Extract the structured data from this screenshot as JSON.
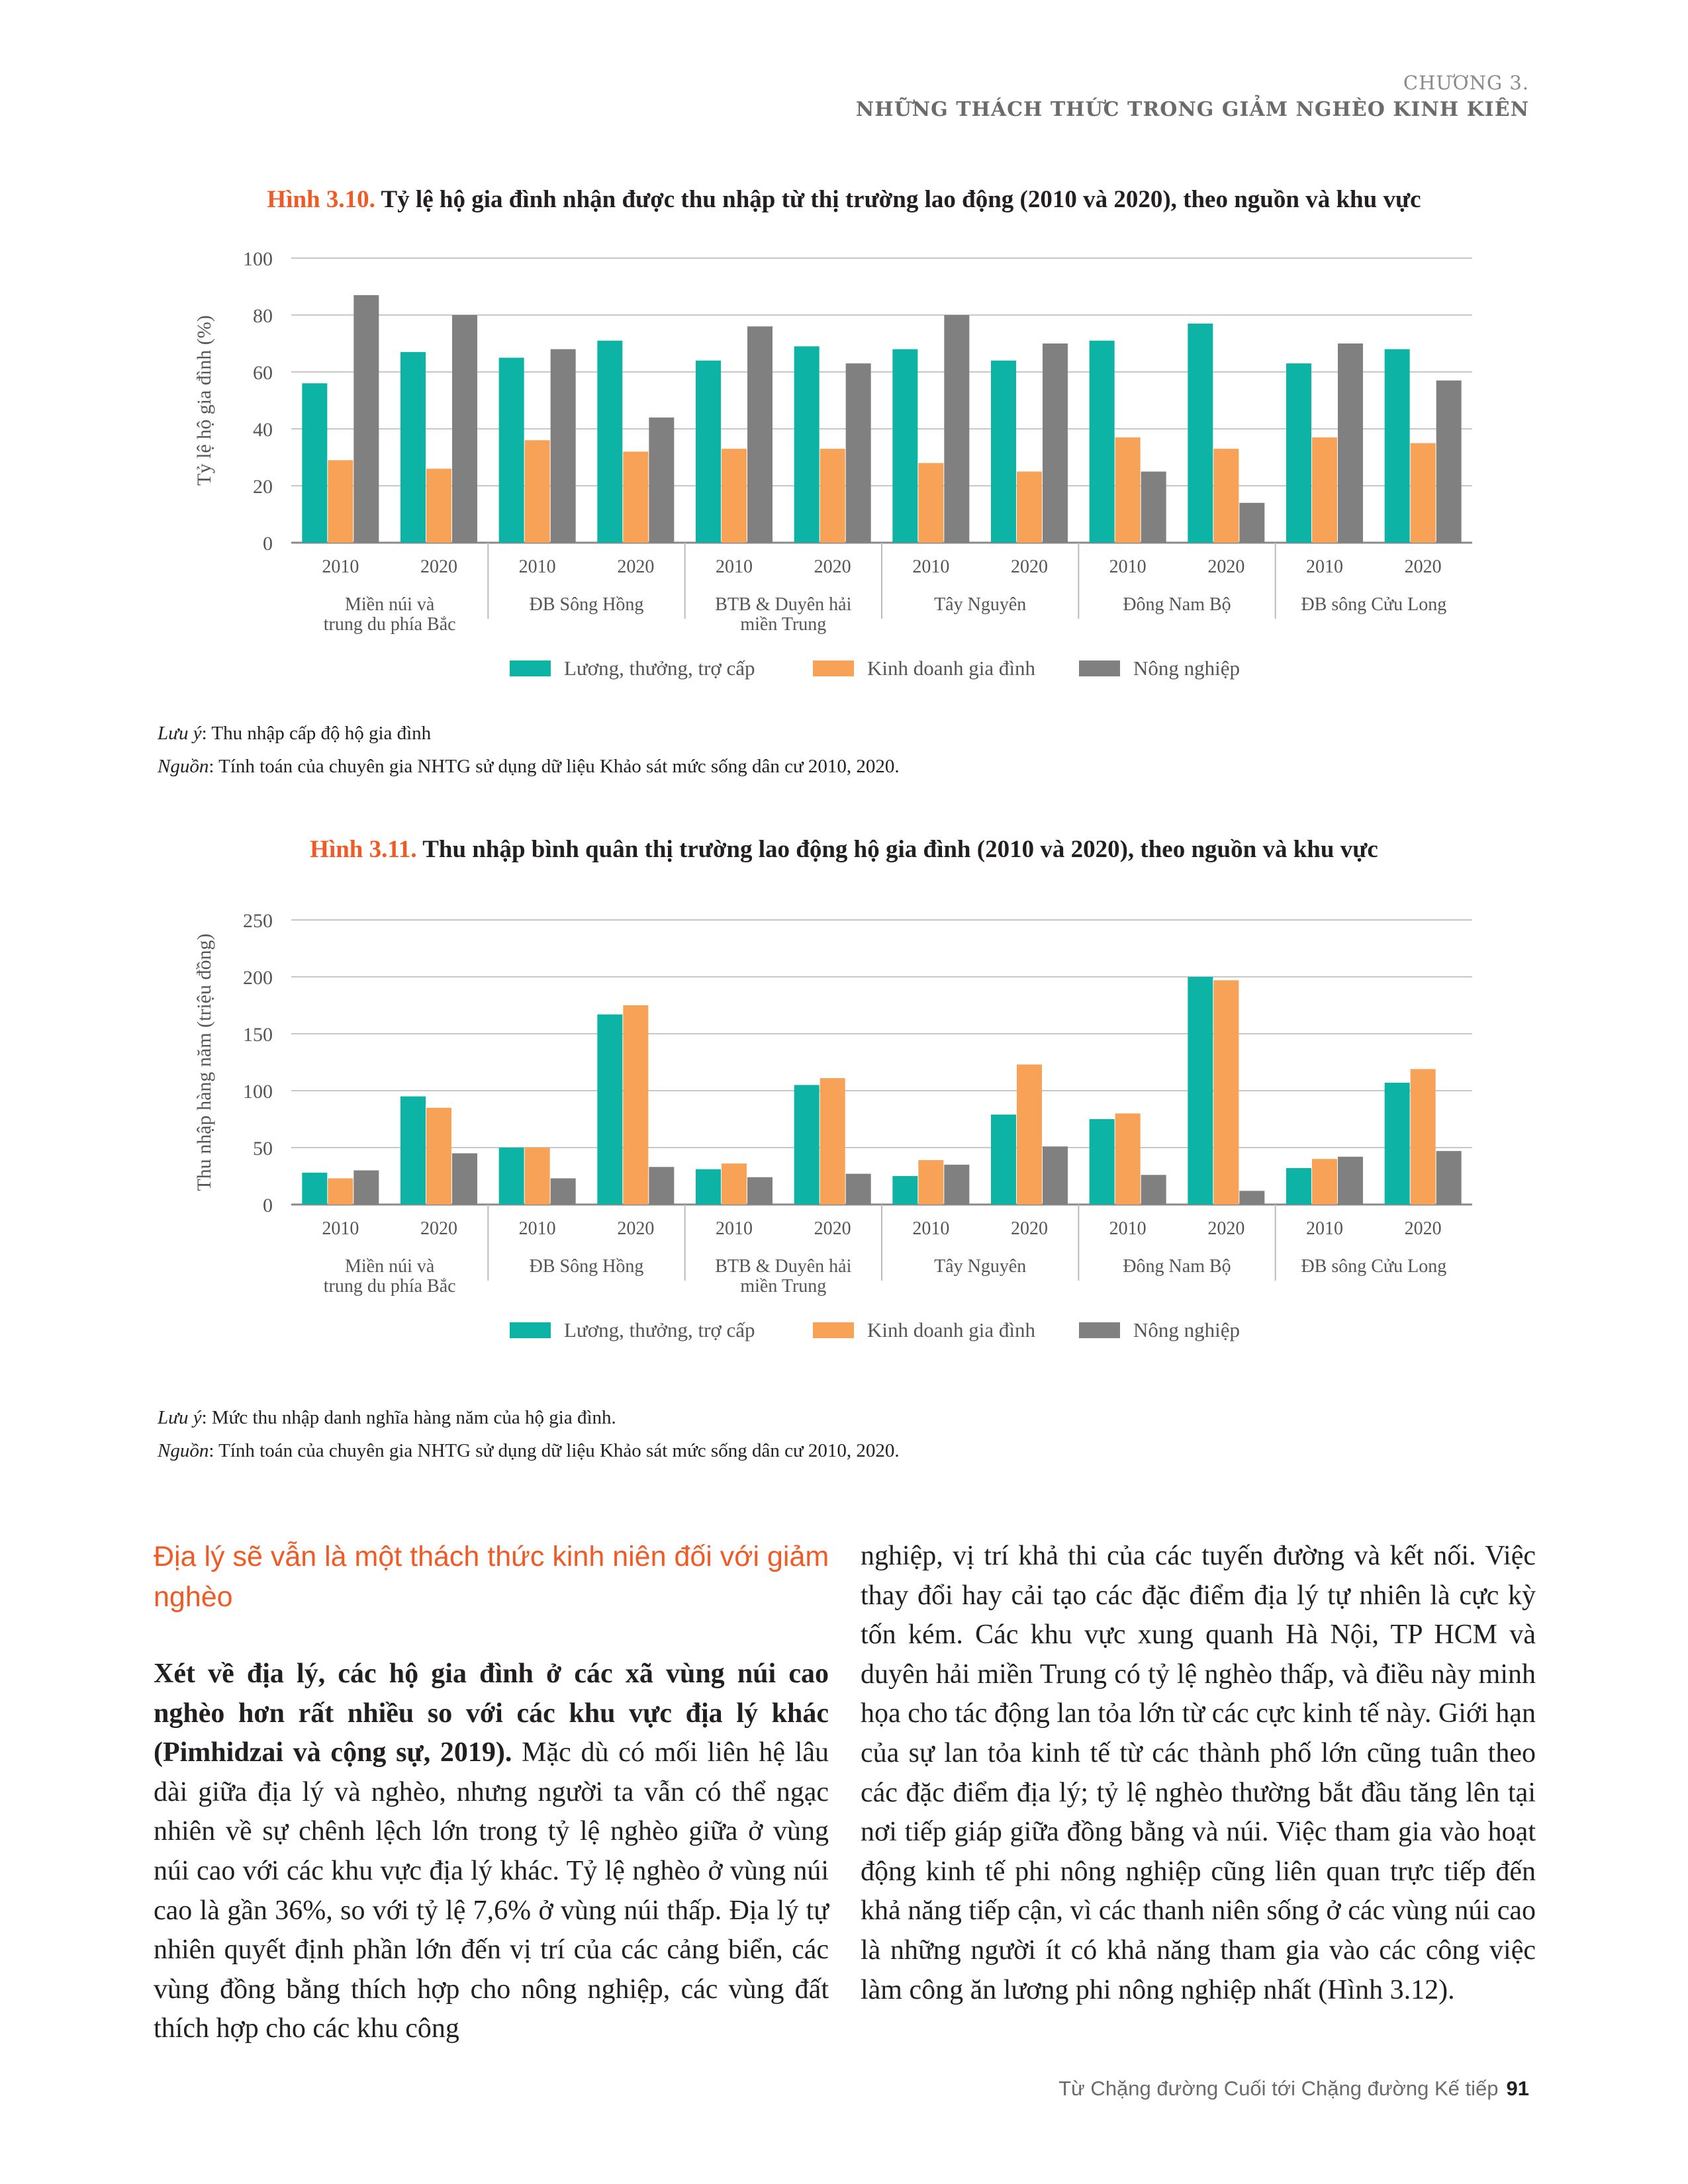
{
  "header": {
    "chapter": "CHƯƠNG 3.",
    "title": "NHỮNG THÁCH THỨC TRONG GIẢM NGHÈO KINH KIÊN"
  },
  "figure1": {
    "number": "Hình 3.10.",
    "title": "Tỷ lệ hộ gia đình nhận được thu nhập từ thị trường lao động (2010 và 2020), theo nguồn và khu vực",
    "note_label": "Lưu ý",
    "note_text": ": Thu nhập cấp độ hộ gia đình",
    "source_label": "Nguồn",
    "source_text": ": Tính toán của chuyên gia NHTG sử dụng dữ liệu Khảo sát mức sống dân cư 2010, 2020."
  },
  "figure2": {
    "number": "Hình 3.11.",
    "title": "Thu nhập bình quân thị trường lao động hộ gia đình (2010 và 2020), theo nguồn và khu vực",
    "note_label": "Lưu ý",
    "note_text": ": Mức thu nhập danh nghĩa hàng năm của hộ gia đình.",
    "source_label": "Nguồn",
    "source_text": ": Tính toán của chuyên gia NHTG sử dụng dữ liệu Khảo sát mức sống dân cư 2010, 2020."
  },
  "chart_data": [
    {
      "type": "bar",
      "title": "Tỷ lệ hộ gia đình nhận được thu nhập từ thị trường lao động (2010 và 2020), theo nguồn và khu vực",
      "ylabel": "Tỷ lệ hộ gia đình (%)",
      "xlabel": "",
      "ylim": [
        0,
        100
      ],
      "yticks": [
        0,
        20,
        40,
        60,
        80,
        100
      ],
      "grid": true,
      "legend": "bottom",
      "regions": [
        [
          "Miền núi và",
          "trung du phía Bắc"
        ],
        [
          "ĐB Sông Hồng"
        ],
        [
          "BTB & Duyên hải",
          "miền Trung"
        ],
        [
          "Tây Nguyên"
        ],
        [
          "Đông Nam Bộ"
        ],
        [
          "ĐB sông Cửu Long"
        ]
      ],
      "categories": [
        "2010",
        "2020",
        "2010",
        "2020",
        "2010",
        "2020",
        "2010",
        "2020",
        "2010",
        "2020",
        "2010",
        "2020"
      ],
      "series": [
        {
          "name": "Lương, thưởng, trợ cấp",
          "color": "#0db3a5",
          "values": [
            56,
            67,
            65,
            71,
            64,
            69,
            68,
            64,
            71,
            77,
            63,
            68
          ]
        },
        {
          "name": "Kinh doanh gia đình",
          "color": "#f7a256",
          "values": [
            29,
            26,
            36,
            32,
            33,
            33,
            28,
            25,
            37,
            33,
            37,
            35
          ]
        },
        {
          "name": "Nông nghiệp",
          "color": "#808080",
          "values": [
            87,
            80,
            68,
            44,
            76,
            63,
            80,
            70,
            25,
            14,
            70,
            57
          ]
        }
      ]
    },
    {
      "type": "bar",
      "title": "Thu nhập bình quân thị trường lao động hộ gia đình (2010 và 2020), theo nguồn và khu vực",
      "ylabel": "Thu nhập hàng năm (triệu đồng)",
      "xlabel": "",
      "ylim": [
        0,
        250
      ],
      "yticks": [
        0,
        50,
        100,
        150,
        200,
        250
      ],
      "grid": true,
      "legend": "bottom",
      "regions": [
        [
          "Miền núi và",
          "trung du phía Bắc"
        ],
        [
          "ĐB Sông Hồng"
        ],
        [
          "BTB & Duyên hải",
          "miền Trung"
        ],
        [
          "Tây Nguyên"
        ],
        [
          "Đông Nam Bộ"
        ],
        [
          "ĐB sông Cửu Long"
        ]
      ],
      "categories": [
        "2010",
        "2020",
        "2010",
        "2020",
        "2010",
        "2020",
        "2010",
        "2020",
        "2010",
        "2020",
        "2010",
        "2020"
      ],
      "series": [
        {
          "name": "Lương, thưởng, trợ cấp",
          "color": "#0db3a5",
          "values": [
            28,
            95,
            50,
            167,
            31,
            105,
            25,
            79,
            75,
            200,
            32,
            107
          ]
        },
        {
          "name": "Kinh doanh gia đình",
          "color": "#f7a256",
          "values": [
            23,
            85,
            50,
            175,
            36,
            111,
            39,
            123,
            80,
            197,
            40,
            119
          ]
        },
        {
          "name": "Nông nghiệp",
          "color": "#808080",
          "values": [
            30,
            45,
            23,
            33,
            24,
            27,
            35,
            51,
            26,
            12,
            42,
            47
          ]
        }
      ]
    }
  ],
  "section": {
    "heading": "Địa lý sẽ vẫn là một thách thức kinh niên đối với giảm nghèo",
    "lead_bold": "Xét về địa lý, các hộ gia đình ở các xã vùng núi cao nghèo hơn rất nhiều so với các khu vực địa lý khác (Pimhidzai và cộng sự, 2019).",
    "lead_rest": " Mặc dù có mối liên hệ lâu dài giữa địa lý và nghèo, nhưng người ta vẫn có thể ngạc nhiên về sự chênh lệch lớn trong tỷ lệ nghèo giữa ở vùng núi cao với các khu vực địa lý khác. Tỷ lệ nghèo ở vùng núi cao là gần 36%, so với tỷ lệ 7,6% ở vùng núi thấp. Địa lý tự nhiên quyết định phần lớn đến vị trí của các cảng biển, các vùng đồng bằng thích hợp cho nông nghiệp, các vùng đất thích hợp cho các khu công",
    "col2": "nghiệp, vị trí khả thi của các tuyến đường và kết nối. Việc thay đổi hay cải tạo các đặc điểm địa lý tự nhiên là cực kỳ tốn kém. Các khu vực xung quanh Hà Nội, TP HCM và duyên hải miền Trung có tỷ lệ nghèo thấp, và điều này minh họa cho tác động lan tỏa lớn từ các cực kinh tế này. Giới hạn của sự lan tỏa kinh tế từ các thành phố lớn cũng tuân theo các đặc điểm địa lý; tỷ lệ nghèo thường bắt đầu tăng lên tại nơi tiếp giáp giữa đồng bằng và núi. Việc tham gia vào hoạt động kinh tế phi nông nghiệp cũng liên quan trực tiếp đến khả năng tiếp cận, vì các thanh niên sống ở các vùng núi cao là những người ít có khả năng tham gia vào các công việc làm công ăn lương phi nông nghiệp nhất (Hình 3.12)."
  },
  "footer": {
    "text": "Từ Chặng đường Cuối tới Chặng đường Kế tiếp",
    "page": "91"
  }
}
